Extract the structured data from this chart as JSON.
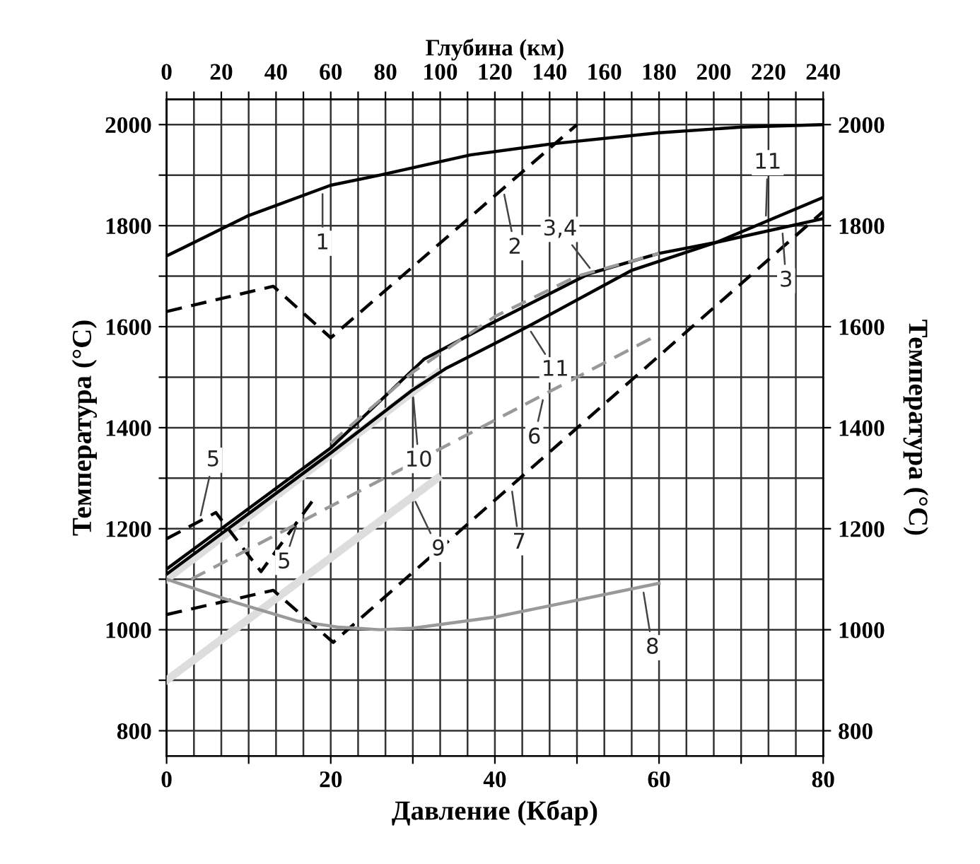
{
  "chart_data": {
    "type": "line",
    "xlabel": "Давление (Кбар)",
    "ylabel": "Температура (°C)",
    "y2label": "Температура (°C)",
    "x2label": "Глубина (км)",
    "xlim": [
      0,
      80
    ],
    "xticks": [
      0,
      {
        "value": 10,
        "label": null
      },
      20,
      {
        "value": 30,
        "label": null
      },
      40,
      {
        "value": 50,
        "label": null
      },
      60,
      {
        "value": 70,
        "label": null
      },
      80
    ],
    "x2lim": [
      0,
      240
    ],
    "x2ticks": [
      0,
      {
        "value": 10,
        "label": null
      },
      20,
      {
        "value": 30,
        "label": null
      },
      40,
      {
        "value": 50,
        "label": null
      },
      60,
      {
        "value": 70,
        "label": null
      },
      80,
      {
        "value": 90,
        "label": null
      },
      100,
      {
        "value": 110,
        "label": null
      },
      120,
      {
        "value": 130,
        "label": null
      },
      140,
      {
        "value": 150,
        "label": null
      },
      160,
      {
        "value": 170,
        "label": null
      },
      180,
      {
        "value": 190,
        "label": null
      },
      200,
      {
        "value": 210,
        "label": null
      },
      220,
      {
        "value": 230,
        "label": null
      },
      240
    ],
    "ylim": [
      750,
      2050
    ],
    "yticks": [
      800,
      {
        "value": 900,
        "label": null
      },
      1000,
      {
        "value": 1100,
        "label": null
      },
      1200,
      {
        "value": 1300,
        "label": null
      },
      1400,
      {
        "value": 1500,
        "label": null
      },
      1600,
      {
        "value": 1700,
        "label": null
      },
      1800,
      {
        "value": 1900,
        "label": null
      },
      2000
    ],
    "y2lim": [
      750,
      2050
    ],
    "y2ticks": [
      800,
      1000,
      1200,
      1400,
      1600,
      1800,
      2000
    ],
    "grid": true,
    "marker": "none",
    "series": [
      {
        "color": "#000000",
        "line_style": "solid",
        "x": [
          0,
          10,
          20,
          26,
          37,
          47,
          60,
          70,
          80
        ],
        "values": [
          1740,
          1820,
          1880,
          1900,
          1940,
          1962,
          1984,
          1995,
          2000
        ]
      },
      {
        "color": "#000000",
        "line_style": "dashed",
        "x": [
          0,
          13,
          20,
          50
        ],
        "values": [
          1630,
          1680,
          1578,
          2000
        ]
      },
      {
        "color": "#000000",
        "line_style": "solid",
        "x": [
          0,
          10,
          20,
          31.4,
          39.5,
          51.5,
          60,
          67,
          80
        ],
        "values": [
          1120,
          1240,
          1360,
          1536,
          1606,
          1705,
          1745,
          1767,
          1814
        ]
      },
      {
        "color": "#999999",
        "line_style": "dashed",
        "x": [
          20,
          30,
          40,
          50,
          60
        ],
        "values": [
          1370,
          1510,
          1620,
          1700,
          1745
        ]
      },
      {
        "color": "#000000",
        "line_style": "solid",
        "x": [
          0,
          10,
          20,
          30,
          34,
          44,
          56.6,
          67,
          80
        ],
        "values": [
          1110,
          1230,
          1350,
          1475,
          1517,
          1600,
          1711,
          1767,
          1856
        ]
      },
      {
        "color": "#000000",
        "line_style": "dashed",
        "x": [
          0,
          6,
          11.5,
          18
        ],
        "values": [
          1180,
          1232,
          1115,
          1260
        ]
      },
      {
        "color": "#999999",
        "line_style": "dashed",
        "x": [
          3,
          60
        ],
        "values": [
          1100,
          1585
        ]
      },
      {
        "color": "#000000",
        "line_style": "dashed",
        "x": [
          0,
          13,
          20.3,
          80
        ],
        "values": [
          1030,
          1078,
          975,
          1828
        ]
      },
      {
        "color": "#999999",
        "line_style": "solid",
        "x": [
          0,
          8.6,
          16,
          21,
          26,
          30,
          40,
          60
        ],
        "values": [
          1100,
          1053,
          1017,
          1005,
          1000,
          1003,
          1025,
          1092
        ]
      },
      {
        "color": "#dddddd",
        "line_style": "solid",
        "x": [
          0,
          33
        ],
        "values": [
          900,
          1300
        ]
      },
      {
        "color": "#dddddd",
        "line_style": "solid",
        "x": [
          0,
          33
        ],
        "values": [
          1100,
          1508
        ]
      }
    ],
    "annotations": [
      {
        "text": "1",
        "x": 19,
        "y": 1874
      },
      {
        "text": "2",
        "x": 41,
        "y": 1873
      },
      {
        "text": "3,4",
        "x": 52,
        "y": 1707
      },
      {
        "text": "11",
        "x": 73,
        "y": 1808
      },
      {
        "text": "3",
        "x": 75,
        "y": 1796
      },
      {
        "text": "11",
        "x": 44,
        "y": 1600
      },
      {
        "text": "10",
        "x": 30,
        "y": 1471
      },
      {
        "text": "6",
        "x": 46,
        "y": 1466
      },
      {
        "text": "9",
        "x": 30,
        "y": 1264
      },
      {
        "text": "7",
        "x": 42,
        "y": 1285
      },
      {
        "text": "8",
        "x": 58,
        "y": 1085
      },
      {
        "text": "5",
        "x": 4,
        "y": 1215
      },
      {
        "text": "5",
        "x": 16,
        "y": 1215
      }
    ]
  }
}
